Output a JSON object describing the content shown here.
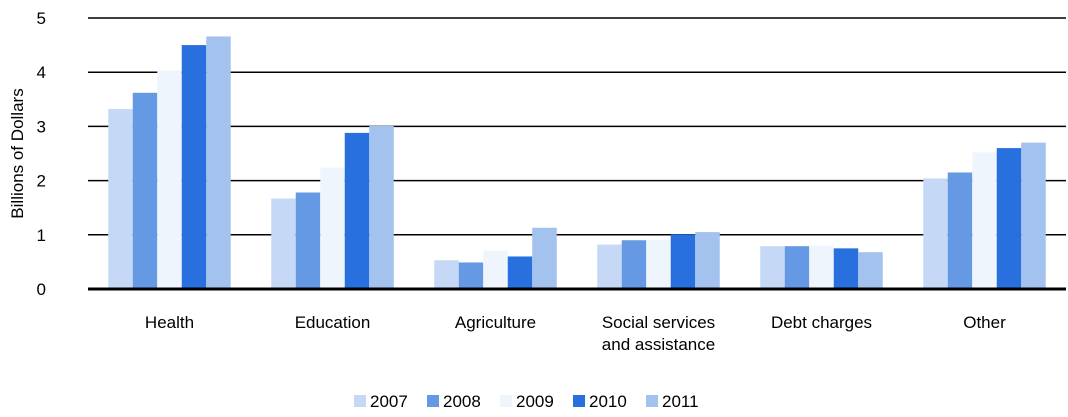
{
  "chart_data": {
    "type": "bar",
    "title": "",
    "xlabel": "",
    "ylabel": "Billions of Dollars",
    "ylim": [
      0,
      5
    ],
    "yticks": [
      0,
      1,
      2,
      3,
      4,
      5
    ],
    "grid": true,
    "legend_position": "bottom",
    "categories": [
      [
        "Health"
      ],
      [
        "Education"
      ],
      [
        "Agriculture"
      ],
      [
        "Social services",
        "and assistance"
      ],
      [
        "Debt charges"
      ],
      [
        "Other"
      ]
    ],
    "series": [
      {
        "name": "2007",
        "color": "#c5d8f5",
        "values": [
          3.32,
          1.67,
          0.53,
          0.82,
          0.79,
          2.04
        ]
      },
      {
        "name": "2008",
        "color": "#6699e3",
        "values": [
          3.62,
          1.78,
          0.49,
          0.9,
          0.79,
          2.15
        ]
      },
      {
        "name": "2009",
        "color": "#eff5fd",
        "values": [
          4.03,
          2.24,
          0.71,
          0.91,
          0.8,
          2.52
        ]
      },
      {
        "name": "2010",
        "color": "#2770dd",
        "values": [
          4.5,
          2.88,
          0.6,
          1.01,
          0.75,
          2.6
        ]
      },
      {
        "name": "2011",
        "color": "#a3c2ee",
        "values": [
          4.66,
          3.01,
          1.13,
          1.05,
          0.68,
          2.7
        ]
      }
    ]
  }
}
